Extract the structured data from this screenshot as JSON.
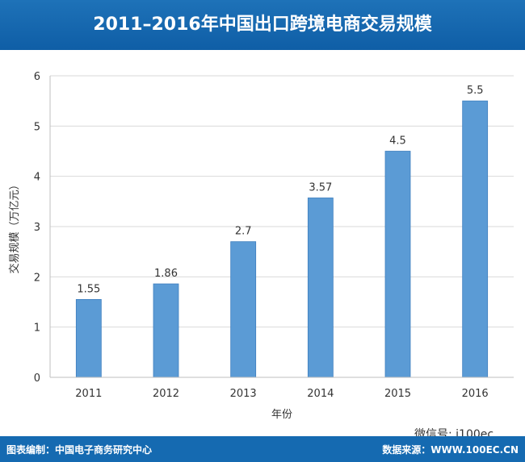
{
  "header": {
    "title": "2011–2016年中国出口跨境电商交易规模"
  },
  "chart_data": {
    "type": "bar",
    "title": "2011–2016年中国出口跨境电商交易规模",
    "categories": [
      "2011",
      "2012",
      "2013",
      "2014",
      "2015",
      "2016"
    ],
    "values": [
      1.55,
      1.86,
      2.7,
      3.57,
      4.5,
      5.5
    ],
    "data_labels": [
      "1.55",
      "1.86",
      "2.7",
      "3.57",
      "4.5",
      "5.5"
    ],
    "xlabel": "年份",
    "ylabel": "交易规模（万亿元）",
    "ylim": [
      0,
      6
    ],
    "yticks": [
      "0",
      "1",
      "2",
      "3",
      "4",
      "5",
      "6"
    ],
    "grid": true,
    "bar_color": "#5b9bd5"
  },
  "footer": {
    "left": "图表编制：中国电子商务研究中心",
    "right": "数据来源：WWW.100EC.CN"
  },
  "watermark": {
    "text": "微信号: i100ec"
  }
}
